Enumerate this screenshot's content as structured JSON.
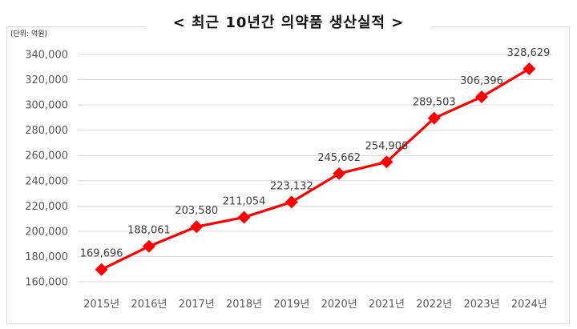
{
  "title": "< 최근 10년간 의약품 생산실적 >",
  "unit_note": "(단위: 억원)",
  "colors": {
    "series": "#ff0000",
    "grid": "#d9d9d9",
    "text": "#595959"
  },
  "chart_data": {
    "type": "line",
    "title": "< 최근 10년간 의약품 생산실적 >",
    "xlabel": "",
    "ylabel": "",
    "categories": [
      "2015년",
      "2016년",
      "2017년",
      "2018년",
      "2019년",
      "2020년",
      "2021년",
      "2022년",
      "2023년",
      "2024년"
    ],
    "series": [
      {
        "values": [
          169696,
          188061,
          203580,
          211054,
          223132,
          245662,
          254906,
          289503,
          306396,
          328629
        ]
      }
    ],
    "data_labels": [
      "169,696",
      "188,061",
      "203,580",
      "211,054",
      "223,132",
      "245,662",
      "254,906",
      "289,503",
      "306,396",
      "328,629"
    ],
    "yticks": [
      160000,
      180000,
      200000,
      220000,
      240000,
      260000,
      280000,
      300000,
      320000,
      340000
    ],
    "ytick_labels": [
      "160,000",
      "180,000",
      "200,000",
      "220,000",
      "240,000",
      "260,000",
      "280,000",
      "300,000",
      "320,000",
      "340,000"
    ],
    "ylim": [
      160000,
      340000
    ],
    "grid": true,
    "marker": "diamond"
  }
}
